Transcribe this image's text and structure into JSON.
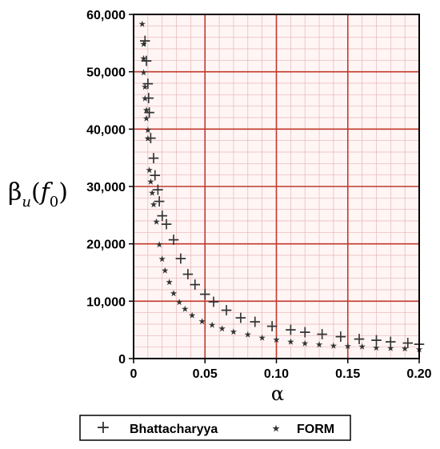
{
  "chart_data": {
    "type": "scatter",
    "xlabel": "α",
    "ylabel_main": "β",
    "ylabel_sub": "u",
    "ylabel_func": "f",
    "ylabel_func_sub": "0",
    "xlim": [
      0,
      0.2
    ],
    "ylim": [
      0,
      60000
    ],
    "x_ticks": [
      0,
      0.05,
      0.1,
      0.15,
      0.2
    ],
    "x_tick_labels": [
      "0",
      "0.05",
      "0.10",
      "0.15",
      "0.20"
    ],
    "y_ticks": [
      0,
      10000,
      20000,
      30000,
      40000,
      50000,
      60000
    ],
    "y_tick_labels": [
      "0",
      "10,000",
      "20,000",
      "30,000",
      "40,000",
      "50,000",
      "60,000"
    ],
    "grid": true,
    "grid_color": "#c0392b",
    "legend_position": "bottom",
    "series": [
      {
        "name": "Bhattacharyya",
        "marker": "+",
        "color": "#222222",
        "points": [
          [
            0.008,
            55500
          ],
          [
            0.009,
            52000
          ],
          [
            0.01,
            48000
          ],
          [
            0.0105,
            45500
          ],
          [
            0.011,
            43000
          ],
          [
            0.012,
            38500
          ],
          [
            0.014,
            35000
          ],
          [
            0.015,
            32000
          ],
          [
            0.017,
            29500
          ],
          [
            0.018,
            27500
          ],
          [
            0.02,
            25000
          ],
          [
            0.023,
            23500
          ],
          [
            0.028,
            20800
          ],
          [
            0.033,
            17500
          ],
          [
            0.038,
            14800
          ],
          [
            0.043,
            13000
          ],
          [
            0.05,
            11300
          ],
          [
            0.056,
            10000
          ],
          [
            0.065,
            8500
          ],
          [
            0.075,
            7200
          ],
          [
            0.085,
            6500
          ],
          [
            0.097,
            5700
          ],
          [
            0.11,
            5100
          ],
          [
            0.12,
            4700
          ],
          [
            0.132,
            4300
          ],
          [
            0.145,
            3900
          ],
          [
            0.158,
            3500
          ],
          [
            0.17,
            3300
          ],
          [
            0.18,
            3000
          ],
          [
            0.192,
            2800
          ],
          [
            0.2,
            2600
          ]
        ]
      },
      {
        "name": "FORM",
        "marker": "⋆",
        "color": "#555555",
        "points": [
          [
            0.006,
            58500
          ],
          [
            0.007,
            55000
          ],
          [
            0.007,
            52500
          ],
          [
            0.007,
            50000
          ],
          [
            0.008,
            47500
          ],
          [
            0.008,
            45500
          ],
          [
            0.009,
            43500
          ],
          [
            0.009,
            42000
          ],
          [
            0.01,
            40000
          ],
          [
            0.01,
            38500
          ],
          [
            0.011,
            33000
          ],
          [
            0.012,
            31000
          ],
          [
            0.013,
            29000
          ],
          [
            0.014,
            27000
          ],
          [
            0.016,
            24000
          ],
          [
            0.018,
            20000
          ],
          [
            0.02,
            17500
          ],
          [
            0.022,
            15500
          ],
          [
            0.025,
            13500
          ],
          [
            0.028,
            11500
          ],
          [
            0.032,
            10000
          ],
          [
            0.036,
            8800
          ],
          [
            0.041,
            7700
          ],
          [
            0.048,
            6600
          ],
          [
            0.055,
            6000
          ],
          [
            0.062,
            5400
          ],
          [
            0.07,
            4800
          ],
          [
            0.08,
            4300
          ],
          [
            0.09,
            3800
          ],
          [
            0.1,
            3400
          ],
          [
            0.11,
            3100
          ],
          [
            0.12,
            2800
          ],
          [
            0.13,
            2600
          ],
          [
            0.14,
            2400
          ],
          [
            0.15,
            2300
          ],
          [
            0.16,
            2200
          ],
          [
            0.17,
            2050
          ],
          [
            0.18,
            1950
          ],
          [
            0.19,
            1850
          ],
          [
            0.2,
            1750
          ]
        ]
      }
    ]
  }
}
